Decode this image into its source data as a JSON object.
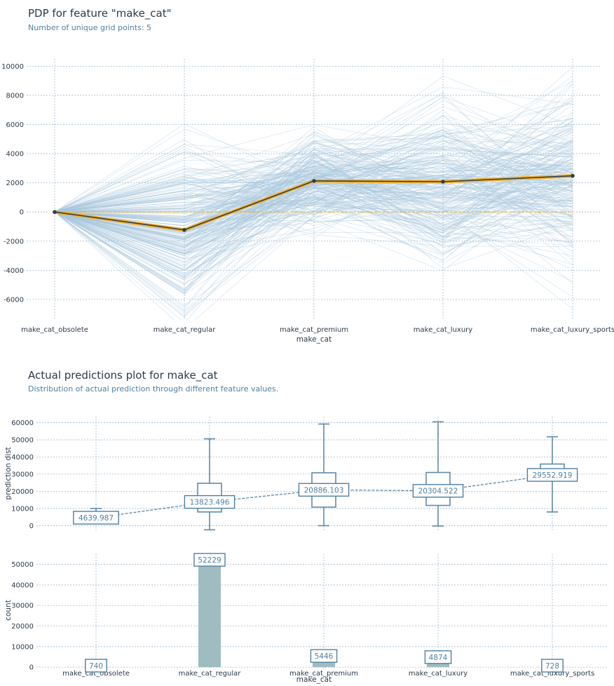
{
  "colors": {
    "ice": "#a8c6dc",
    "pdp": "#2e3f4e",
    "pdp_glow": "#f2b230",
    "zero_line": "#f2b230",
    "box": "#5f8aa8",
    "bar": "#9fbcc1",
    "label": "#4f7fa3"
  },
  "chart_data": [
    {
      "type": "line",
      "title": "PDP for feature \"make_cat\"",
      "subtitle": "Number of unique grid points: 5",
      "xlabel": "make_cat",
      "ylabel": "",
      "categories": [
        "make_cat_obsolete",
        "make_cat_regular",
        "make_cat_premium",
        "make_cat_luxury",
        "make_cat_luxury_sports"
      ],
      "yticks": [
        10000,
        8000,
        6000,
        4000,
        2000,
        0,
        -2000,
        -4000,
        -6000
      ],
      "ylim": [
        -7400,
        10500
      ],
      "grid": true,
      "series": [
        {
          "values": [
            0,
            -1230,
            2130,
            2080,
            2480
          ]
        },
        {
          "values": [
            0,
            0,
            0,
            0,
            0
          ]
        }
      ],
      "ice_lines": "many individual-instance lines in light blue spreading from 0 at make_cat_obsolete"
    },
    {
      "type": "box",
      "title": "Actual predictions plot for make_cat",
      "subtitle": "Distribution of actual prediction through different feature values.",
      "ylabel": "prediction dist",
      "categories": [
        "make_cat_obsolete",
        "make_cat_regular",
        "make_cat_premium",
        "make_cat_luxury",
        "make_cat_luxury_sports"
      ],
      "yticks": [
        60000,
        50000,
        40000,
        30000,
        20000,
        10000,
        0
      ],
      "ylim": [
        -3500,
        63500
      ],
      "grid": true,
      "boxes": [
        {
          "min": 4300,
          "q1": 5600,
          "median": 6200,
          "q3": 6800,
          "max": 10000
        },
        {
          "min": -2400,
          "q1": 8000,
          "median": 12000,
          "q3": 24700,
          "max": 50600
        },
        {
          "min": 0,
          "q1": 10800,
          "median": 18000,
          "q3": 30800,
          "max": 59200
        },
        {
          "min": -200,
          "q1": 11800,
          "median": 19000,
          "q3": 31000,
          "max": 60500
        },
        {
          "min": 8000,
          "q1": 28000,
          "median": 31000,
          "q3": 35900,
          "max": 51800
        }
      ],
      "means": [
        4639.987,
        13823.496,
        20886.103,
        20304.522,
        29552.919
      ],
      "mean_labels": [
        "4639.987",
        "13823.496",
        "20886.103",
        "20304.522",
        "29552.919"
      ]
    },
    {
      "type": "bar",
      "xlabel": "make_cat",
      "ylabel": "count",
      "categories": [
        "make_cat_obsolete",
        "make_cat_regular",
        "make_cat_premium",
        "make_cat_luxury",
        "make_cat_luxury_sports"
      ],
      "values": [
        740,
        52229,
        5446,
        4874,
        728
      ],
      "value_labels": [
        "740",
        "52229",
        "5446",
        "4874",
        "728"
      ],
      "yticks": [
        50000,
        40000,
        30000,
        20000,
        10000,
        0
      ],
      "ylim": [
        -300,
        55000
      ],
      "grid": true
    }
  ]
}
